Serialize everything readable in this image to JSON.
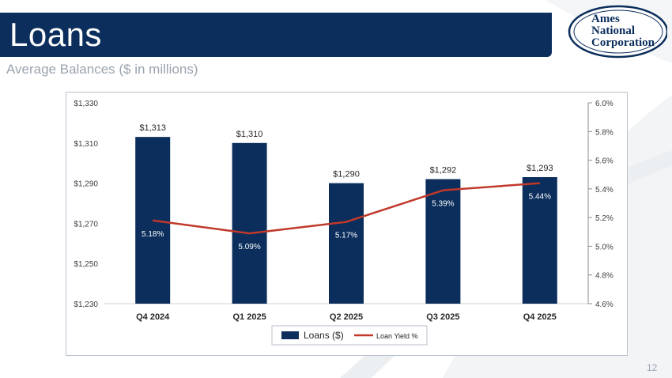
{
  "slide": {
    "title": "Loans",
    "subtitle": "Average Balances ($ in millions)",
    "page_number": "12"
  },
  "logo": {
    "line1": "Ames",
    "line2": "National",
    "line3": "Corporation"
  },
  "colors": {
    "navy": "#0b2e5c",
    "yield_line": "#c0392b",
    "grid": "#d9d9d9"
  },
  "chart_data": {
    "type": "bar",
    "title": "",
    "categories": [
      "Q4 2024",
      "Q1 2025",
      "Q2 2025",
      "Q3 2025",
      "Q4 2025"
    ],
    "series": [
      {
        "name": "Loans ($)",
        "type": "bar",
        "axis": "left",
        "values": [
          1313,
          1310,
          1290,
          1292,
          1293
        ],
        "labels": [
          "$1,313",
          "$1,310",
          "$1,290",
          "$1,292",
          "$1,293"
        ]
      },
      {
        "name": "Loan Yield %",
        "type": "line",
        "axis": "right",
        "values": [
          5.18,
          5.09,
          5.17,
          5.39,
          5.44
        ],
        "labels": [
          "5.18%",
          "5.09%",
          "5.17%",
          "5.39%",
          "5.44%"
        ]
      }
    ],
    "y_left": {
      "min": 1230,
      "max": 1330,
      "ticks": [
        1230,
        1250,
        1270,
        1290,
        1310,
        1330
      ],
      "tick_labels": [
        "$1,230",
        "$1,250",
        "$1,270",
        "$1,290",
        "$1,310",
        "$1,330"
      ]
    },
    "y_right": {
      "min": 4.6,
      "max": 6.0,
      "ticks": [
        4.6,
        4.8,
        5.0,
        5.2,
        5.4,
        5.6,
        5.8,
        6.0
      ],
      "tick_labels": [
        "4.6%",
        "4.8%",
        "5.0%",
        "5.2%",
        "5.4%",
        "5.6%",
        "5.8%",
        "6.0%"
      ]
    },
    "legend_position": "bottom-center",
    "grid": false
  }
}
